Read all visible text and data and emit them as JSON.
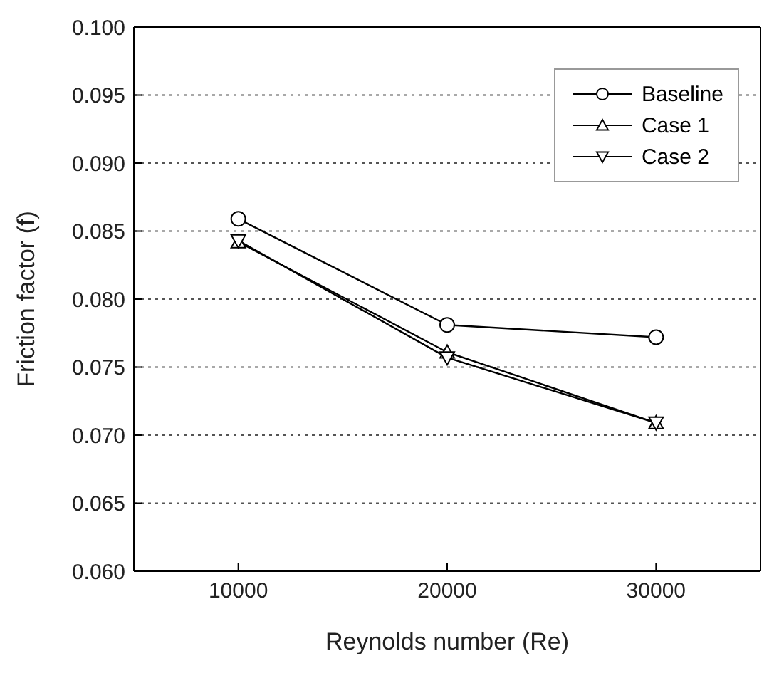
{
  "chart_data": {
    "type": "line",
    "xlabel": "Reynolds number (Re)",
    "ylabel": "Friction factor (f)",
    "x": [
      10000,
      20000,
      30000
    ],
    "series": [
      {
        "name": "Baseline",
        "color": "#000000",
        "marker": "circle",
        "values": [
          0.0859,
          0.0781,
          0.0772
        ]
      },
      {
        "name": "Case 1",
        "color": "#000000",
        "marker": "triangle",
        "values": [
          0.0842,
          0.0761,
          0.0709
        ]
      },
      {
        "name": "Case 2",
        "color": "#000000",
        "marker": "triangle-down",
        "values": [
          0.0843,
          0.0757,
          0.0709
        ]
      }
    ],
    "xlim": [
      5000,
      35000
    ],
    "xticks": [
      10000,
      20000,
      30000
    ],
    "ylim": [
      0.06,
      0.1
    ],
    "yticks": [
      {
        "value": 0.06,
        "label": "0.060"
      },
      {
        "value": 0.065,
        "label": "0.065"
      },
      {
        "value": 0.07,
        "label": "0.070"
      },
      {
        "value": 0.075,
        "label": "0.075"
      },
      {
        "value": 0.08,
        "label": "0.080"
      },
      {
        "value": 0.085,
        "label": "0.085"
      },
      {
        "value": 0.09,
        "label": "0.090"
      },
      {
        "value": 0.095,
        "label": "0.095"
      },
      {
        "value": 0.1,
        "label": "0.100"
      }
    ],
    "grid": "y",
    "legend": "top right",
    "line_style": "solid"
  }
}
